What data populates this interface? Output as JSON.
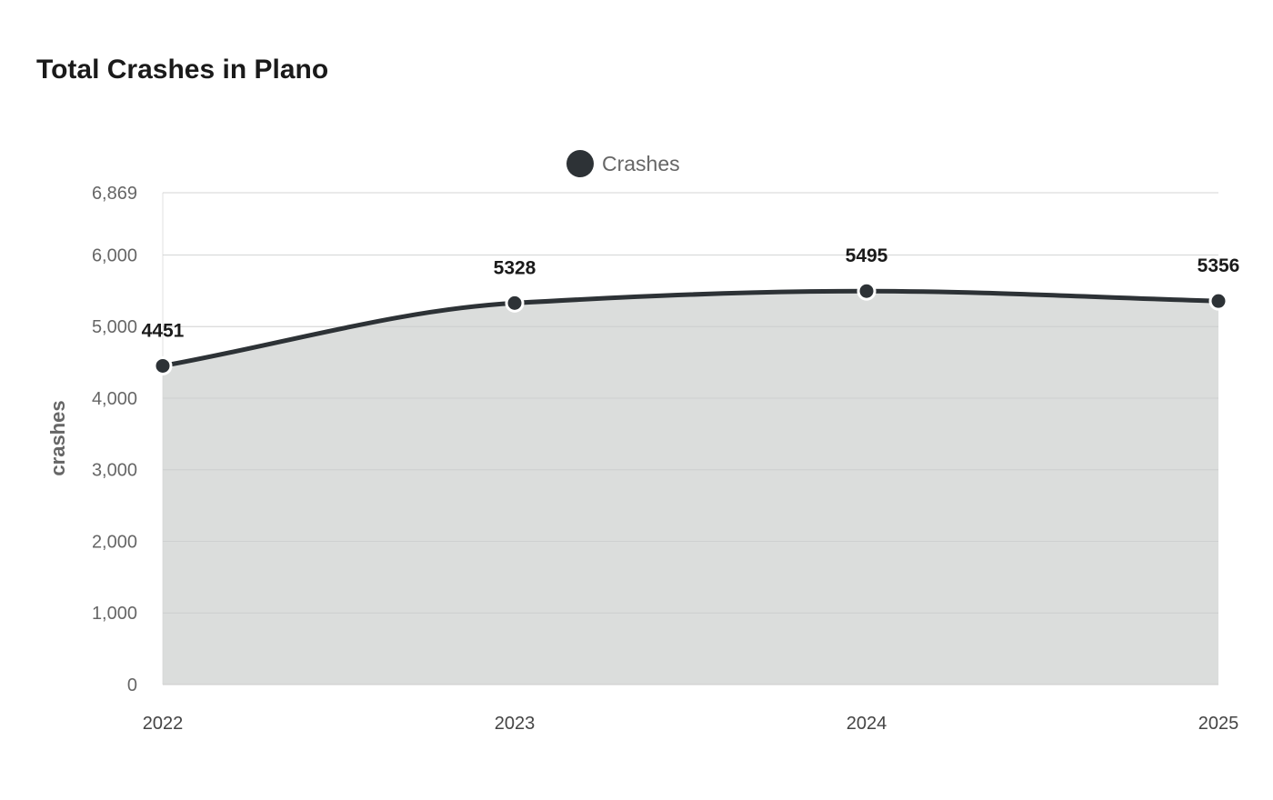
{
  "chart_data": {
    "type": "area",
    "title": "Total Crashes in Plano",
    "xlabel": "",
    "ylabel": "crashes",
    "categories": [
      "2022",
      "2023",
      "2024",
      "2025"
    ],
    "series": [
      {
        "name": "Crashes",
        "values": [
          4451,
          5328,
          5495,
          5356
        ],
        "color": "#2d3236",
        "fill": "#d5d7d6"
      }
    ],
    "ylim": [
      0,
      6869
    ],
    "yticks": [
      0,
      1000,
      2000,
      3000,
      4000,
      5000,
      6000,
      6869
    ],
    "ytick_labels": [
      "0",
      "1,000",
      "2,000",
      "3,000",
      "4,000",
      "5,000",
      "6,000",
      "6,869"
    ],
    "grid": true,
    "legend_position": "top-center",
    "data_labels": true,
    "curve": "smooth"
  }
}
